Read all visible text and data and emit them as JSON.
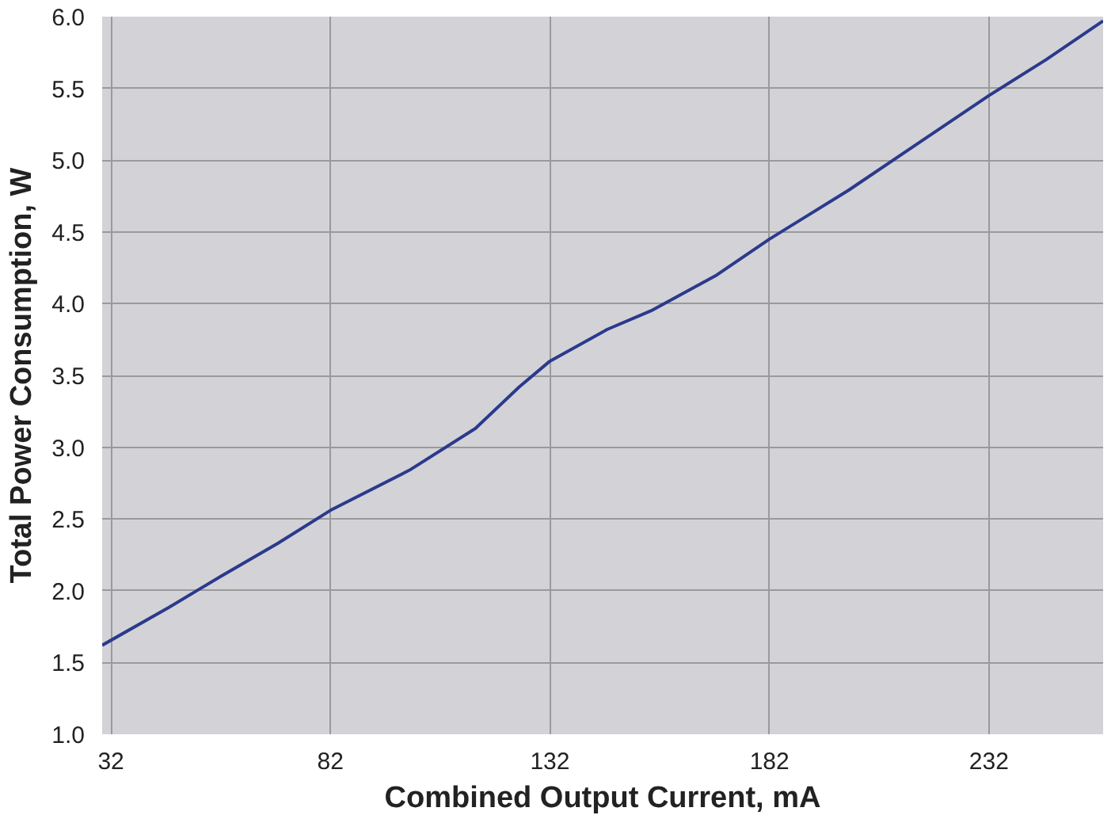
{
  "chart_data": {
    "type": "line",
    "xlabel": "Combined Output Current, mA",
    "ylabel": "Total Power Consumption, W",
    "x": [
      30,
      45,
      57,
      70,
      82,
      100,
      115,
      125,
      132,
      145,
      155,
      170,
      182,
      200,
      215,
      232,
      245,
      258
    ],
    "series": [
      {
        "color": "#2b3a8c",
        "values": [
          1.62,
          1.88,
          2.1,
          2.33,
          2.56,
          2.84,
          3.13,
          3.42,
          3.6,
          3.82,
          3.95,
          4.2,
          4.45,
          4.79,
          5.1,
          5.45,
          5.7,
          5.97
        ]
      }
    ],
    "xlim": [
      30,
      258
    ],
    "xticks": [
      32,
      82,
      132,
      182,
      232
    ],
    "ylim": [
      1.0,
      6.0
    ],
    "yticks": [
      {
        "value": 1,
        "label": "1.0"
      },
      {
        "value": 1.5,
        "label": "1.5"
      },
      {
        "value": 2,
        "label": "2.0"
      },
      {
        "value": 2.5,
        "label": "2.5"
      },
      {
        "value": 3,
        "label": "3.0"
      },
      {
        "value": 3.5,
        "label": "3.5"
      },
      {
        "value": 4,
        "label": "4.0"
      },
      {
        "value": 4.5,
        "label": "4.5"
      },
      {
        "value": 5,
        "label": "5.0"
      },
      {
        "value": 5.5,
        "label": "5.5"
      },
      {
        "value": 6,
        "label": "6.0"
      }
    ],
    "grid": true
  }
}
